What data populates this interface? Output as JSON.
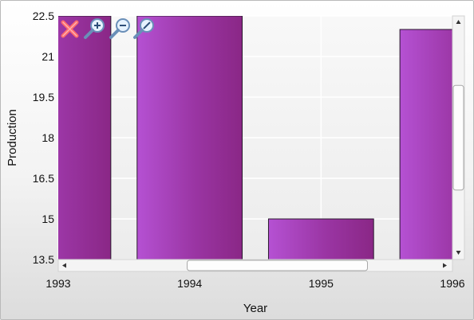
{
  "chart_data": {
    "type": "bar",
    "xlabel": "Year",
    "ylabel": "Production",
    "x_visible_range": [
      1993,
      1996
    ],
    "ylim": [
      13.5,
      22.5
    ],
    "x_ticks": [
      "1993",
      "1994",
      "1995",
      "1996"
    ],
    "y_ticks": [
      "22.5",
      "21",
      "19.5",
      "18",
      "16.5",
      "15",
      "13.5"
    ],
    "categories": [
      "1993",
      "1994",
      "1995",
      "1996"
    ],
    "values": [
      22.5,
      22.5,
      15,
      22
    ],
    "grid": true,
    "legend": "none",
    "colors": {
      "bar_light": "#b04fd0",
      "bar_dark": "#8e2a8a",
      "bar_edge": "#2a1a2e"
    }
  },
  "toolbar": {
    "icons": [
      "close-icon",
      "zoom-in-icon",
      "zoom-out-icon",
      "zoom-reset-icon"
    ]
  },
  "scrollbars": {
    "horizontal_thumb": [
      0.38,
      0.75
    ],
    "vertical_thumb": [
      0.28,
      0.72
    ]
  }
}
